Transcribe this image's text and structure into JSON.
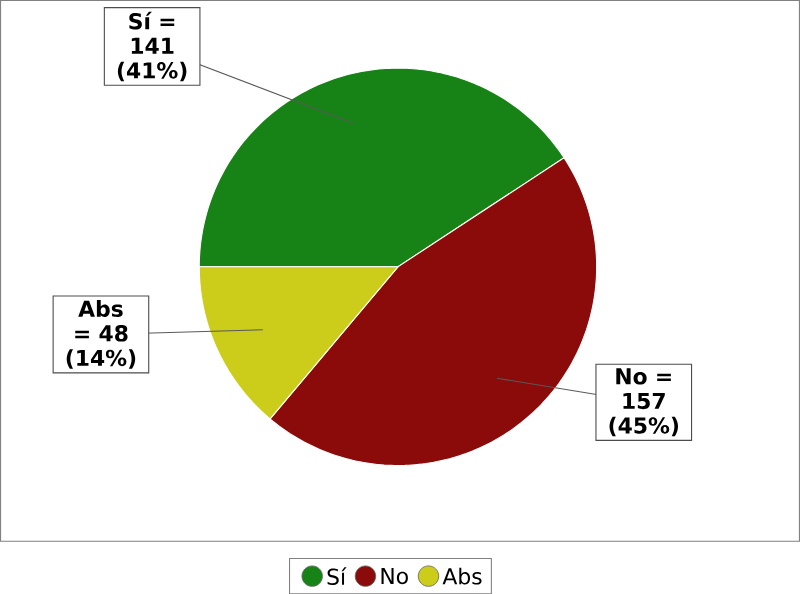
{
  "chart_data": {
    "type": "pie",
    "categories": [
      "Sí",
      "No",
      "Abs"
    ],
    "values": [
      141,
      157,
      48
    ],
    "colors": [
      "#178317",
      "#8b0a0a",
      "#cccc1a"
    ],
    "value_labels": [
      "Sí = 141 (41%)",
      "No = 157 (45%)",
      "Abs = 48 (14%)"
    ],
    "legend": "bottom"
  }
}
